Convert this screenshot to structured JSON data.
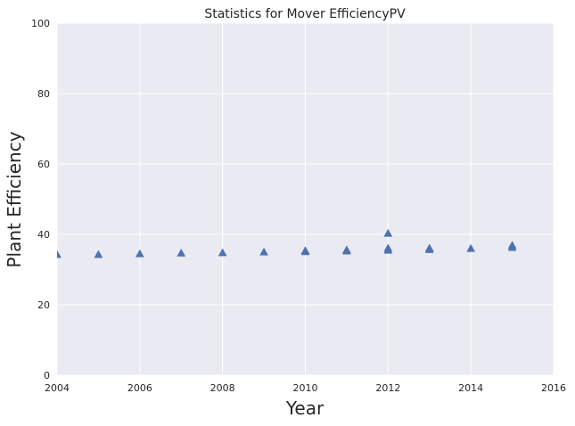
{
  "chart_data": {
    "type": "scatter",
    "title": "Statistics for Mover EfficiencyPV",
    "xlabel": "Year",
    "ylabel": "Plant Efficiency",
    "xlim": [
      2004,
      2016
    ],
    "ylim": [
      0,
      100
    ],
    "xticks": [
      "2004",
      "2006",
      "2008",
      "2010",
      "2012",
      "2014",
      "2016"
    ],
    "yticks": [
      "0",
      "20",
      "40",
      "60",
      "80",
      "100"
    ],
    "grid": true,
    "marker": "triangle",
    "marker_color": "#4c72b0",
    "background_color": "#eaeaf2",
    "points": [
      {
        "x": 2004,
        "y": 34.3
      },
      {
        "x": 2005,
        "y": 34.3
      },
      {
        "x": 2006,
        "y": 34.5
      },
      {
        "x": 2007,
        "y": 34.7
      },
      {
        "x": 2008,
        "y": 34.8
      },
      {
        "x": 2009,
        "y": 35.0
      },
      {
        "x": 2010,
        "y": 35.1
      },
      {
        "x": 2010,
        "y": 35.4
      },
      {
        "x": 2011,
        "y": 35.3
      },
      {
        "x": 2011,
        "y": 35.6
      },
      {
        "x": 2012,
        "y": 35.5
      },
      {
        "x": 2012,
        "y": 36.1
      },
      {
        "x": 2012,
        "y": 40.3
      },
      {
        "x": 2013,
        "y": 35.7
      },
      {
        "x": 2013,
        "y": 36.1
      },
      {
        "x": 2014,
        "y": 36.0
      },
      {
        "x": 2015,
        "y": 36.3
      },
      {
        "x": 2015,
        "y": 36.9
      }
    ]
  }
}
